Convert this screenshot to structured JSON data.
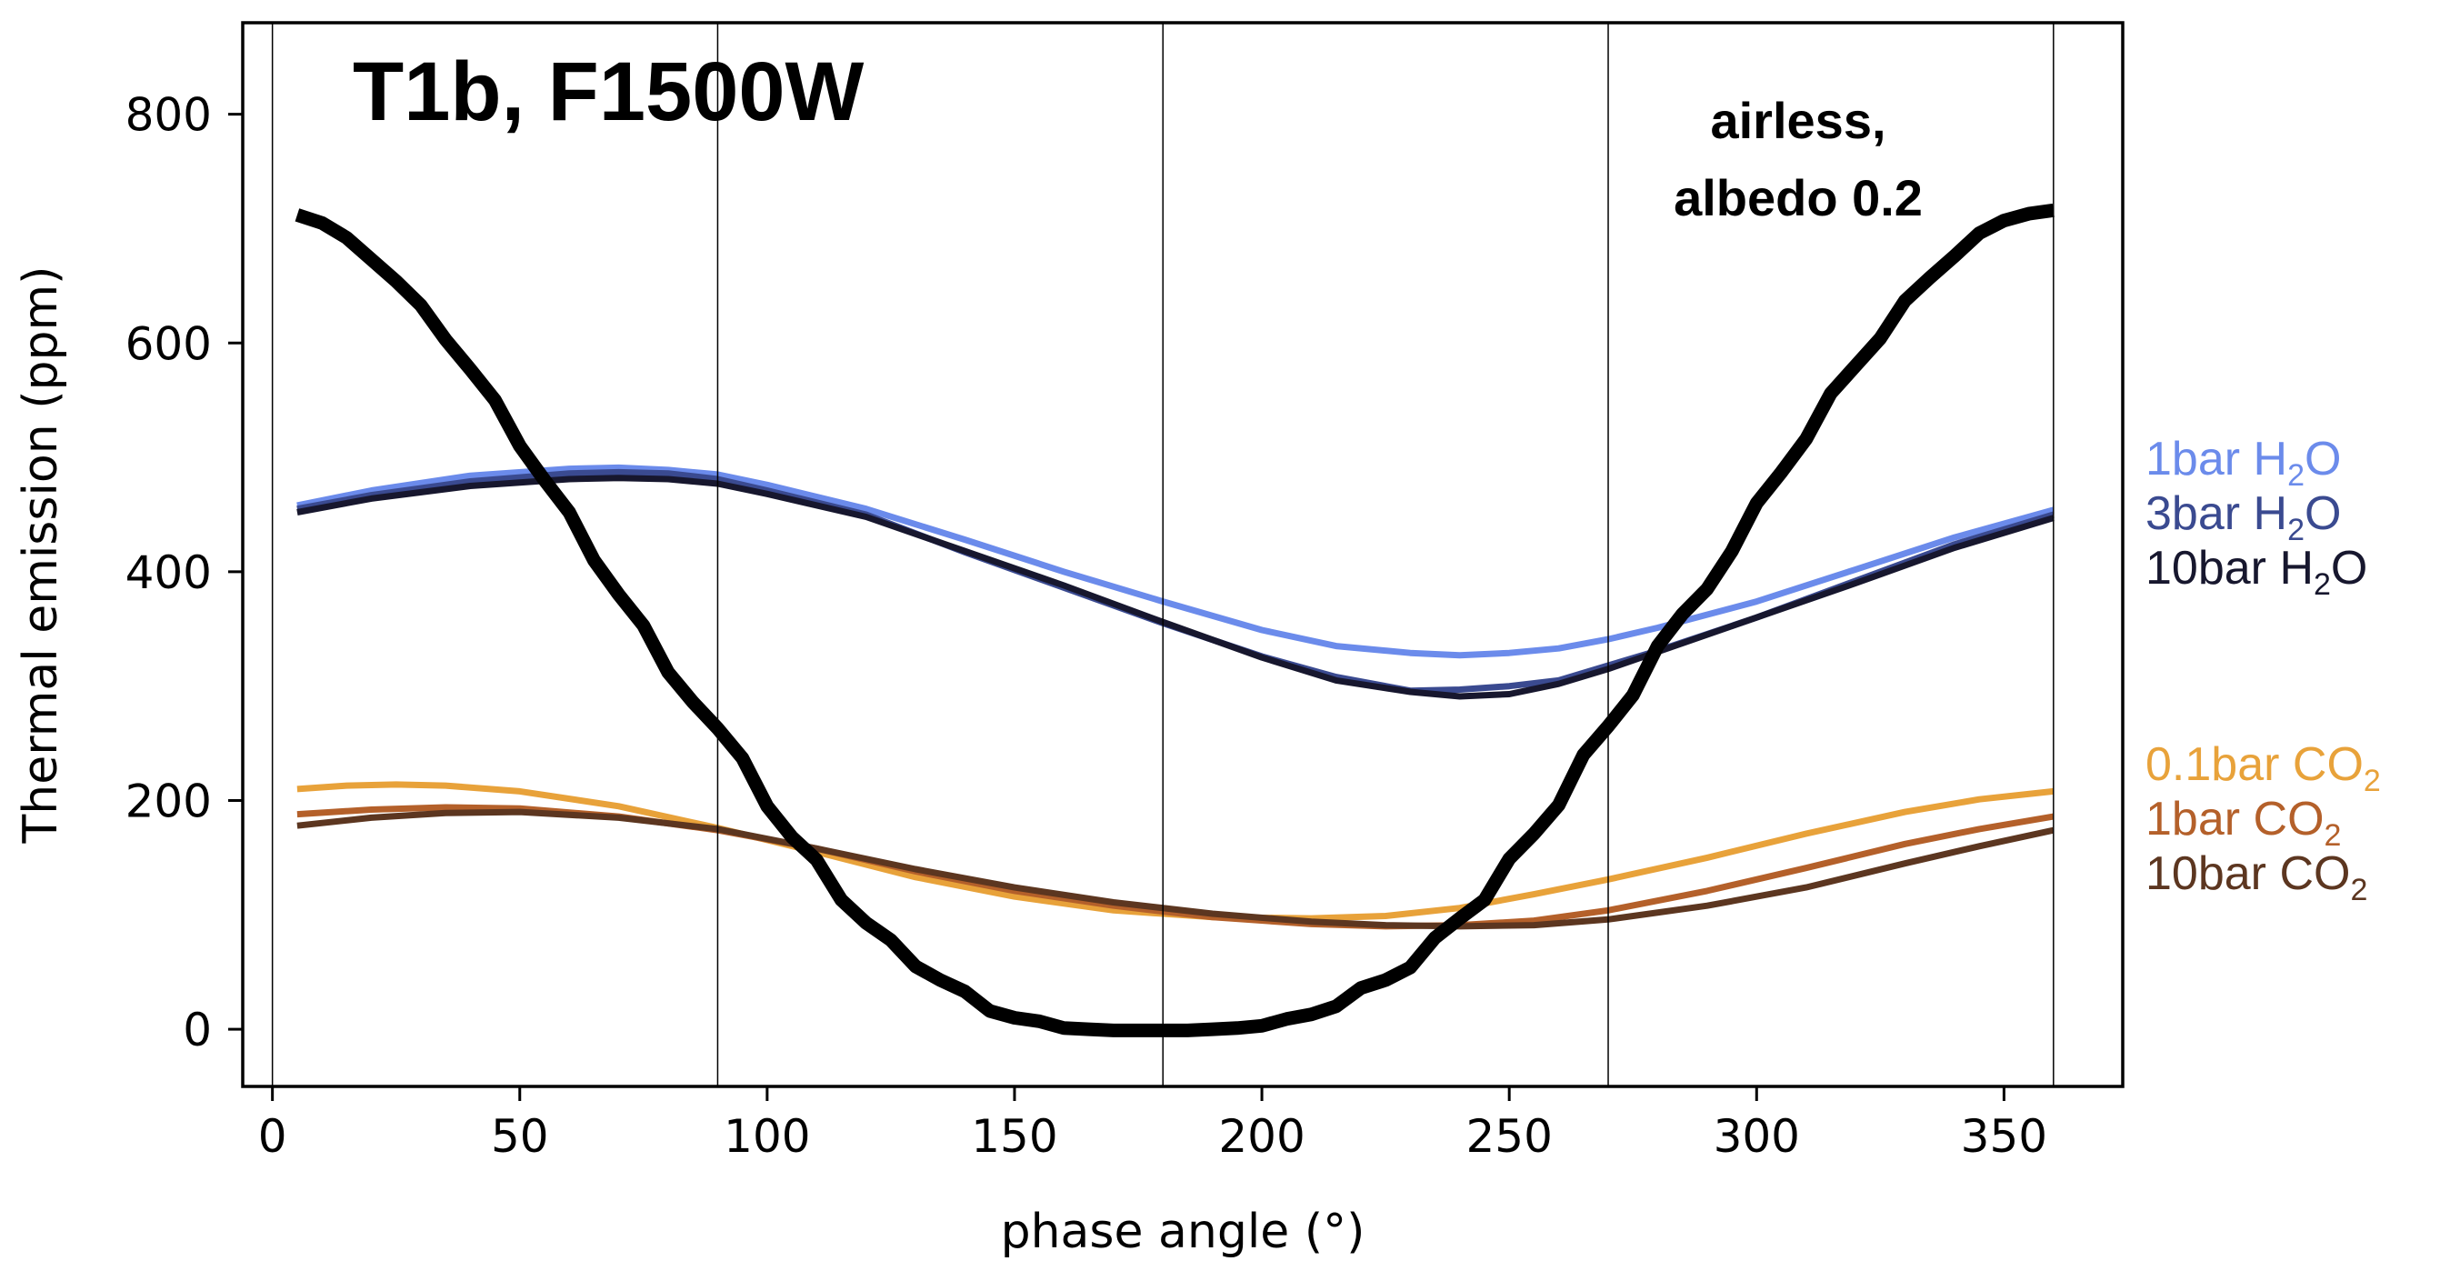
{
  "chart_data": {
    "type": "line",
    "title": "T1b, F1500W",
    "xlabel": "phase angle (°)",
    "ylabel": "Thermal emission (ppm)",
    "xlim": [
      -6,
      374
    ],
    "ylim": [
      -50,
      880
    ],
    "xticks": [
      0,
      50,
      100,
      150,
      200,
      250,
      300,
      350
    ],
    "yticks": [
      0,
      200,
      400,
      600,
      800
    ],
    "vlines": [
      0,
      90,
      180,
      270,
      360
    ],
    "grid": false,
    "legend_position": "right-outside",
    "annotation": {
      "line1": "airless,",
      "line2": "albedo 0.2"
    },
    "series": [
      {
        "name": "airless, albedo 0.2",
        "color": "#000000",
        "x": [
          5,
          10,
          15,
          20,
          25,
          30,
          35,
          40,
          45,
          50,
          55,
          60,
          65,
          70,
          75,
          80,
          85,
          90,
          95,
          100,
          105,
          110,
          115,
          120,
          125,
          130,
          135,
          140,
          145,
          150,
          155,
          160,
          165,
          170,
          175,
          180,
          185,
          190,
          195,
          200,
          205,
          210,
          215,
          220,
          225,
          230,
          235,
          240,
          245,
          250,
          255,
          260,
          265,
          270,
          275,
          280,
          285,
          290,
          295,
          300,
          305,
          310,
          315,
          320,
          325,
          330,
          335,
          340,
          345,
          350,
          355,
          360
        ],
        "y": [
          712,
          705,
          692,
          673,
          654,
          633,
          603,
          577,
          550,
          510,
          480,
          452,
          410,
          380,
          353,
          312,
          286,
          263,
          237,
          195,
          168,
          148,
          113,
          93,
          78,
          55,
          43,
          33,
          16,
          10,
          7,
          1,
          0,
          -1,
          -1,
          -1,
          -1,
          0,
          1,
          3,
          9,
          13,
          20,
          36,
          43,
          54,
          80,
          97,
          113,
          149,
          171,
          196,
          240,
          265,
          292,
          335,
          363,
          385,
          418,
          460,
          487,
          516,
          556,
          580,
          604,
          637,
          657,
          676,
          696,
          707,
          713,
          716
        ]
      },
      {
        "name": "1bar H2O",
        "color": "#6B8BEB",
        "x": [
          5,
          20,
          40,
          60,
          70,
          80,
          90,
          100,
          120,
          140,
          160,
          180,
          200,
          215,
          230,
          240,
          250,
          260,
          270,
          280,
          300,
          320,
          340,
          360
        ],
        "y": [
          458,
          471,
          484,
          490,
          491,
          489,
          485,
          476,
          455,
          428,
          400,
          374,
          349,
          335,
          329,
          327,
          329,
          333,
          341,
          351,
          374,
          402,
          430,
          454
        ]
      },
      {
        "name": "3bar H2O",
        "color": "#3A4A90",
        "x": [
          5,
          20,
          40,
          60,
          70,
          80,
          90,
          100,
          120,
          140,
          160,
          180,
          200,
          215,
          230,
          240,
          250,
          260,
          270,
          280,
          300,
          320,
          340,
          360
        ],
        "y": [
          455,
          467,
          479,
          486,
          487,
          486,
          481,
          471,
          450,
          417,
          386,
          355,
          326,
          308,
          296,
          297,
          300,
          305,
          318,
          331,
          360,
          392,
          424,
          450
        ]
      },
      {
        "name": "10bar H2O",
        "color": "#17172E",
        "x": [
          5,
          20,
          40,
          60,
          70,
          80,
          90,
          100,
          120,
          140,
          160,
          180,
          200,
          215,
          230,
          240,
          250,
          260,
          270,
          280,
          300,
          320,
          340,
          360
        ],
        "y": [
          452,
          464,
          475,
          481,
          482,
          481,
          477,
          468,
          448,
          418,
          388,
          356,
          325,
          305,
          295,
          291,
          293,
          302,
          315,
          330,
          360,
          390,
          421,
          447
        ]
      },
      {
        "name": "0.1bar CO2",
        "color": "#E8A23A",
        "x": [
          5,
          15,
          25,
          35,
          50,
          70,
          90,
          110,
          130,
          150,
          170,
          190,
          210,
          225,
          240,
          255,
          270,
          290,
          310,
          330,
          345,
          360
        ],
        "y": [
          210,
          213,
          214,
          213,
          208,
          195,
          176,
          155,
          133,
          116,
          104,
          98,
          97,
          99,
          106,
          118,
          131,
          150,
          171,
          190,
          201,
          208
        ]
      },
      {
        "name": "1bar CO2",
        "color": "#B4602A",
        "x": [
          5,
          20,
          35,
          50,
          70,
          90,
          110,
          130,
          150,
          170,
          190,
          210,
          225,
          240,
          255,
          270,
          290,
          310,
          330,
          345,
          360
        ],
        "y": [
          188,
          192,
          194,
          193,
          186,
          174,
          158,
          138,
          121,
          108,
          98,
          92,
          90,
          91,
          95,
          104,
          121,
          141,
          162,
          175,
          186
        ]
      },
      {
        "name": "10bar CO2",
        "color": "#5C3620",
        "x": [
          5,
          20,
          35,
          50,
          70,
          90,
          110,
          130,
          150,
          170,
          190,
          210,
          225,
          240,
          255,
          270,
          290,
          310,
          330,
          345,
          360
        ],
        "y": [
          178,
          185,
          189,
          190,
          185,
          175,
          158,
          140,
          124,
          111,
          101,
          94,
          91,
          90,
          91,
          96,
          108,
          124,
          145,
          160,
          174
        ]
      }
    ],
    "legend": [
      {
        "base": "1bar H",
        "sub": "2",
        "tail": "O",
        "color": "#6B8BEB"
      },
      {
        "base": "3bar H",
        "sub": "2",
        "tail": "O",
        "color": "#3A4A90"
      },
      {
        "base": "10bar H",
        "sub": "2",
        "tail": "O",
        "color": "#17172E"
      },
      {
        "base": "0.1bar CO",
        "sub": "2",
        "tail": "",
        "color": "#E8A23A"
      },
      {
        "base": "1bar CO",
        "sub": "2",
        "tail": "",
        "color": "#B4602A"
      },
      {
        "base": "10bar CO",
        "sub": "2",
        "tail": "",
        "color": "#5C3620"
      }
    ]
  }
}
